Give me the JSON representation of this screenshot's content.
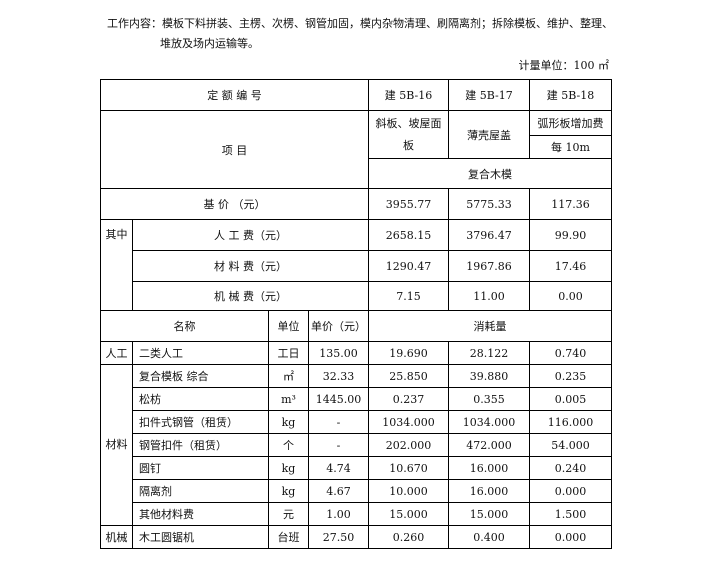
{
  "intro": {
    "label": "工作内容：",
    "line1": "模板下料拼装、主楞、次楞、钢管加固，模内杂物清理、刷隔离剂；拆除模板、维护、整理、",
    "line2": "堆放及场内运输等。"
  },
  "unit": "计量单位：100 ㎡",
  "header": {
    "code_label": "定 额 编 号",
    "codes": [
      "建 5B-16",
      "建 5B-17",
      "建 5B-18"
    ],
    "item_label": "项 目",
    "items": [
      "斜板、坡屋面板",
      "薄壳屋盖",
      "弧形板增加费"
    ],
    "item3_sub": "每 10m",
    "group": "复合木模"
  },
  "base": {
    "label": "基 价 （元）",
    "values": [
      "3955.77",
      "5775.33",
      "117.36"
    ]
  },
  "among": {
    "label": "其中",
    "rows": [
      {
        "label": "人 工 费（元）",
        "values": [
          "2658.15",
          "3796.47",
          "99.90"
        ]
      },
      {
        "label": "材 料 费（元）",
        "values": [
          "1290.47",
          "1967.86",
          "17.46"
        ]
      },
      {
        "label": "机 械 费（元）",
        "values": [
          "7.15",
          "11.00",
          "0.00"
        ]
      }
    ]
  },
  "cols": {
    "name": "名称",
    "unit": "单位",
    "price": "单价（元）",
    "consumption": "消耗量"
  },
  "groups": {
    "labor": "人工",
    "material": "材料",
    "machine": "机械"
  },
  "rows": [
    {
      "name": "二类人工",
      "unit": "工日",
      "price": "135.00",
      "v": [
        "19.690",
        "28.122",
        "0.740"
      ]
    },
    {
      "name": "复合模板 综合",
      "unit": "㎡",
      "price": "32.33",
      "v": [
        "25.850",
        "39.880",
        "0.235"
      ]
    },
    {
      "name": "松枋",
      "unit": "m³",
      "price": "1445.00",
      "v": [
        "0.237",
        "0.355",
        "0.005"
      ]
    },
    {
      "name": "扣件式钢管（租赁）",
      "unit": "kg",
      "price": "-",
      "v": [
        "1034.000",
        "1034.000",
        "116.000"
      ]
    },
    {
      "name": "钢管扣件（租赁）",
      "unit": "个",
      "price": "-",
      "v": [
        "202.000",
        "472.000",
        "54.000"
      ]
    },
    {
      "name": "圆钉",
      "unit": "kg",
      "price": "4.74",
      "v": [
        "10.670",
        "16.000",
        "0.240"
      ]
    },
    {
      "name": "隔离剂",
      "unit": "kg",
      "price": "4.67",
      "v": [
        "10.000",
        "16.000",
        "0.000"
      ]
    },
    {
      "name": "其他材料费",
      "unit": "元",
      "price": "1.00",
      "v": [
        "15.000",
        "15.000",
        "1.500"
      ]
    },
    {
      "name": "木工圆锯机",
      "unit": "台班",
      "price": "27.50",
      "v": [
        "0.260",
        "0.400",
        "0.000"
      ]
    }
  ]
}
